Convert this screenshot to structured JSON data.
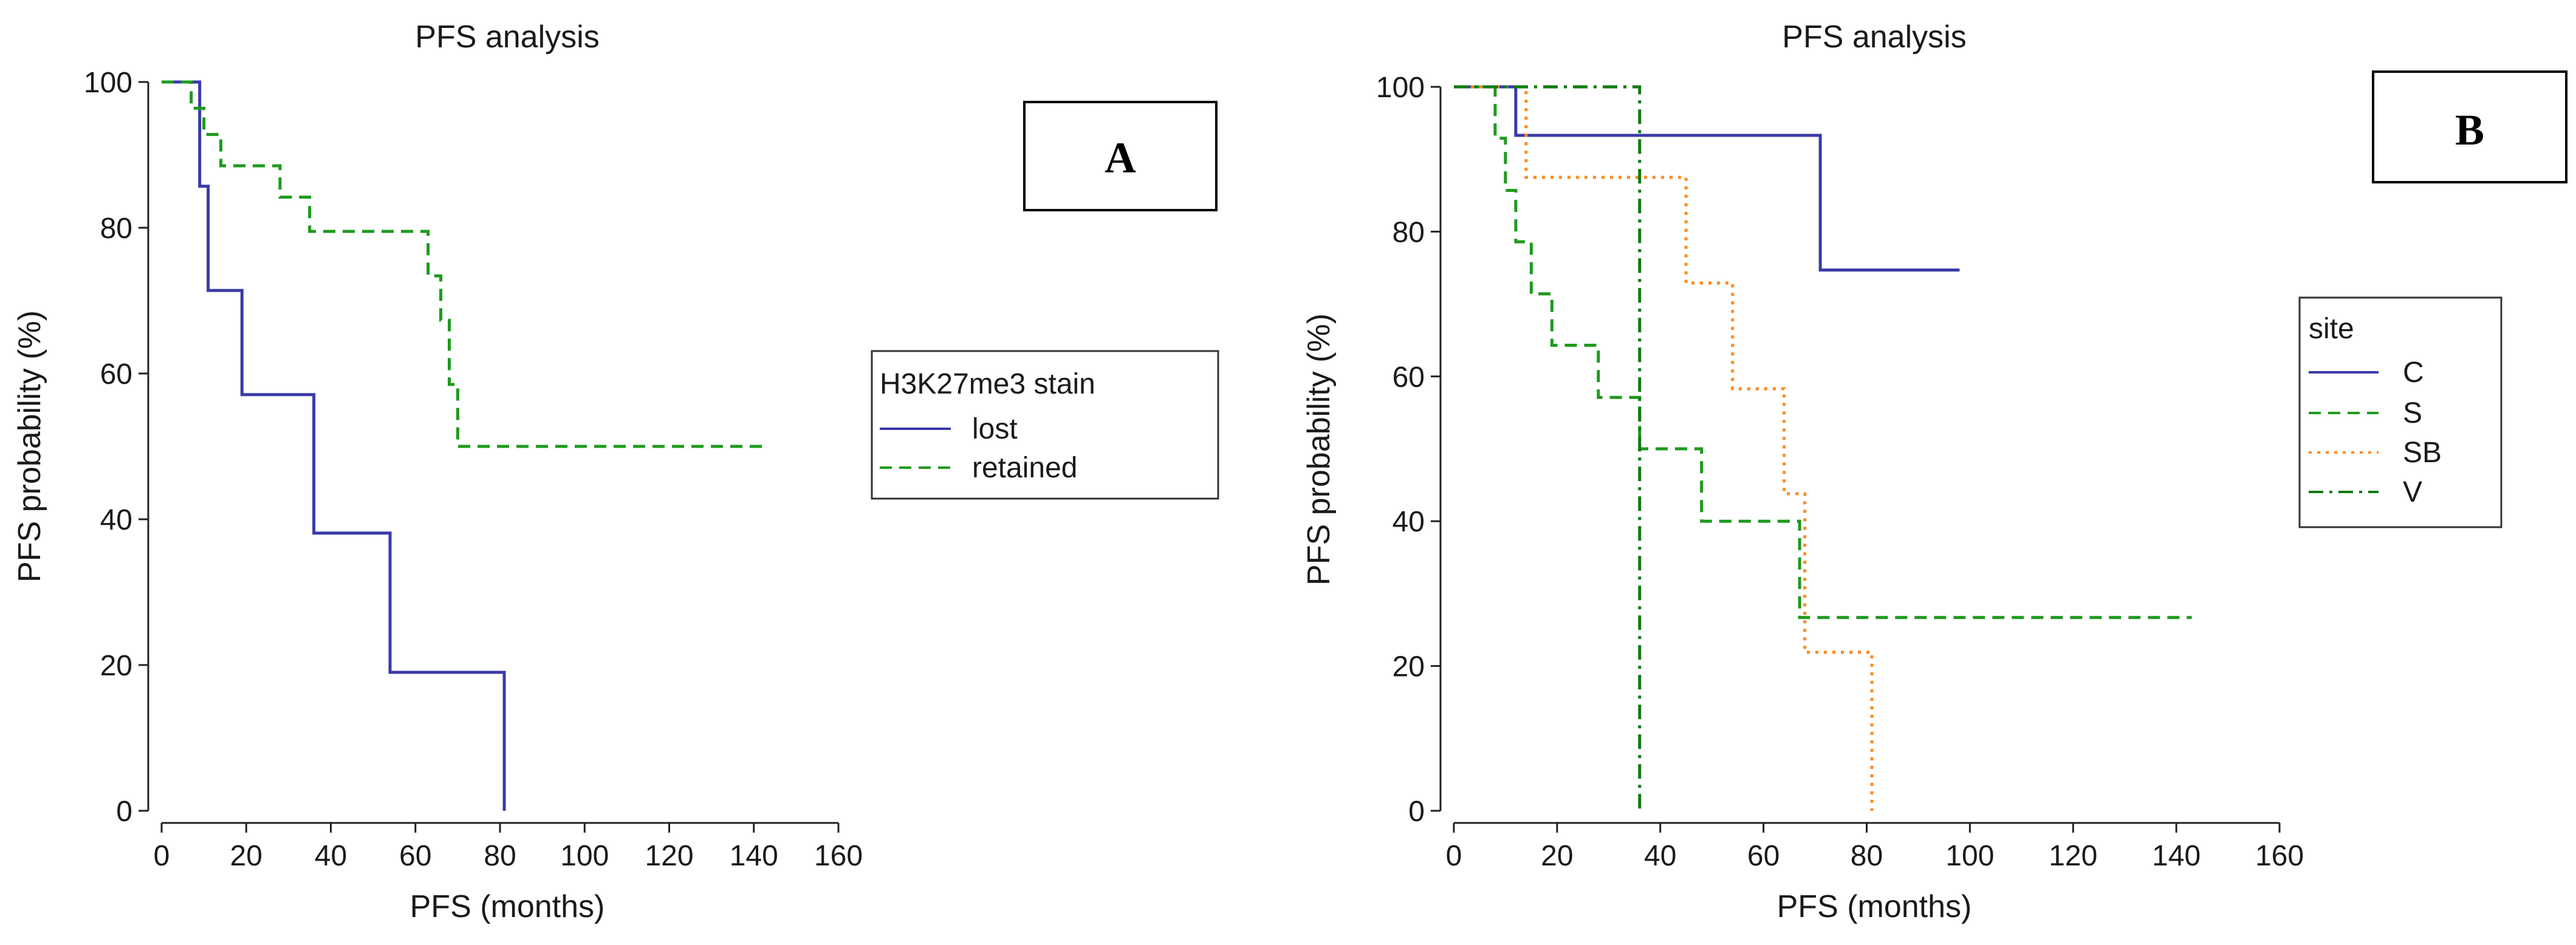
{
  "colors": {
    "blue": "#3a3aa8",
    "green": "#1e9a1e",
    "orange": "#ff8a1c",
    "darkgreen": "#0f7a0f"
  },
  "chart_data": [
    {
      "type": "line",
      "subtype": "kaplan-meier-step",
      "title": "PFS analysis",
      "xlabel": "PFS (months)",
      "ylabel": "PFS probability (%)",
      "xlim": [
        0,
        160
      ],
      "ylim": [
        0,
        100
      ],
      "xticks": [
        0,
        20,
        40,
        60,
        80,
        100,
        120,
        140,
        160
      ],
      "yticks": [
        0,
        20,
        40,
        60,
        80,
        100
      ],
      "panel_label": "A",
      "legend": {
        "title": "H3K27me3 stain",
        "position": "right"
      },
      "series": [
        {
          "name": "lost",
          "color": "#3a3aa8",
          "dash": "solid",
          "x": [
            0,
            9,
            9,
            11,
            11,
            13,
            13,
            19,
            19,
            36,
            36,
            54,
            54,
            81,
            81
          ],
          "y": [
            100,
            100,
            85.7,
            85.7,
            71.4,
            71.4,
            71.4,
            71.4,
            57.1,
            57.1,
            38.1,
            38.1,
            19,
            19,
            0
          ]
        },
        {
          "name": "retained",
          "color": "#1e9a1e",
          "dash": "dashed",
          "x": [
            0,
            7,
            7,
            10,
            10,
            14,
            14,
            28,
            28,
            35,
            35,
            48,
            48,
            63,
            63,
            66,
            66,
            68,
            68,
            70,
            70,
            143
          ],
          "y": [
            100,
            100,
            96.4,
            96.4,
            92.8,
            92.8,
            88.5,
            88.5,
            84.2,
            84.2,
            79.5,
            79.5,
            79.5,
            79.5,
            73.4,
            73.4,
            67.3,
            67.3,
            58.5,
            58.5,
            50,
            50
          ]
        }
      ]
    },
    {
      "type": "line",
      "subtype": "kaplan-meier-step",
      "title": "PFS analysis",
      "xlabel": "PFS (months)",
      "ylabel": "PFS probability (%)",
      "xlim": [
        0,
        160
      ],
      "ylim": [
        0,
        100
      ],
      "xticks": [
        0,
        20,
        40,
        60,
        80,
        100,
        120,
        140,
        160
      ],
      "yticks": [
        0,
        20,
        40,
        60,
        80,
        100
      ],
      "panel_label": "B",
      "legend": {
        "title": "site",
        "position": "right"
      },
      "series": [
        {
          "name": "C",
          "color": "#3a3aa8",
          "dash": "solid",
          "x": [
            0,
            12,
            12,
            71,
            71,
            98
          ],
          "y": [
            100,
            100,
            93.3,
            93.3,
            74.7,
            74.7
          ]
        },
        {
          "name": "S",
          "color": "#1e9a1e",
          "dash": "dashed",
          "x": [
            0,
            8,
            8,
            10,
            10,
            12,
            12,
            15,
            15,
            19,
            19,
            28,
            28,
            36,
            36,
            48,
            48,
            67,
            67,
            143
          ],
          "y": [
            100,
            100,
            92.9,
            92.9,
            85.7,
            85.7,
            78.6,
            78.6,
            71.4,
            71.4,
            64.3,
            64.3,
            57.1,
            57.1,
            50,
            50,
            40,
            40,
            26.7,
            26.7
          ]
        },
        {
          "name": "SB",
          "color": "#ff8a1c",
          "dash": "dotted",
          "x": [
            0,
            14,
            14,
            45,
            45,
            54,
            54,
            64,
            64,
            68,
            68,
            81,
            81
          ],
          "y": [
            100,
            100,
            87.5,
            87.5,
            72.9,
            72.9,
            58.3,
            58.3,
            43.8,
            43.8,
            21.9,
            21.9,
            0
          ]
        },
        {
          "name": "V",
          "color": "#0f7a0f",
          "dash": "dashdot",
          "x": [
            0,
            36,
            36
          ],
          "y": [
            100,
            100,
            0
          ]
        }
      ]
    }
  ]
}
